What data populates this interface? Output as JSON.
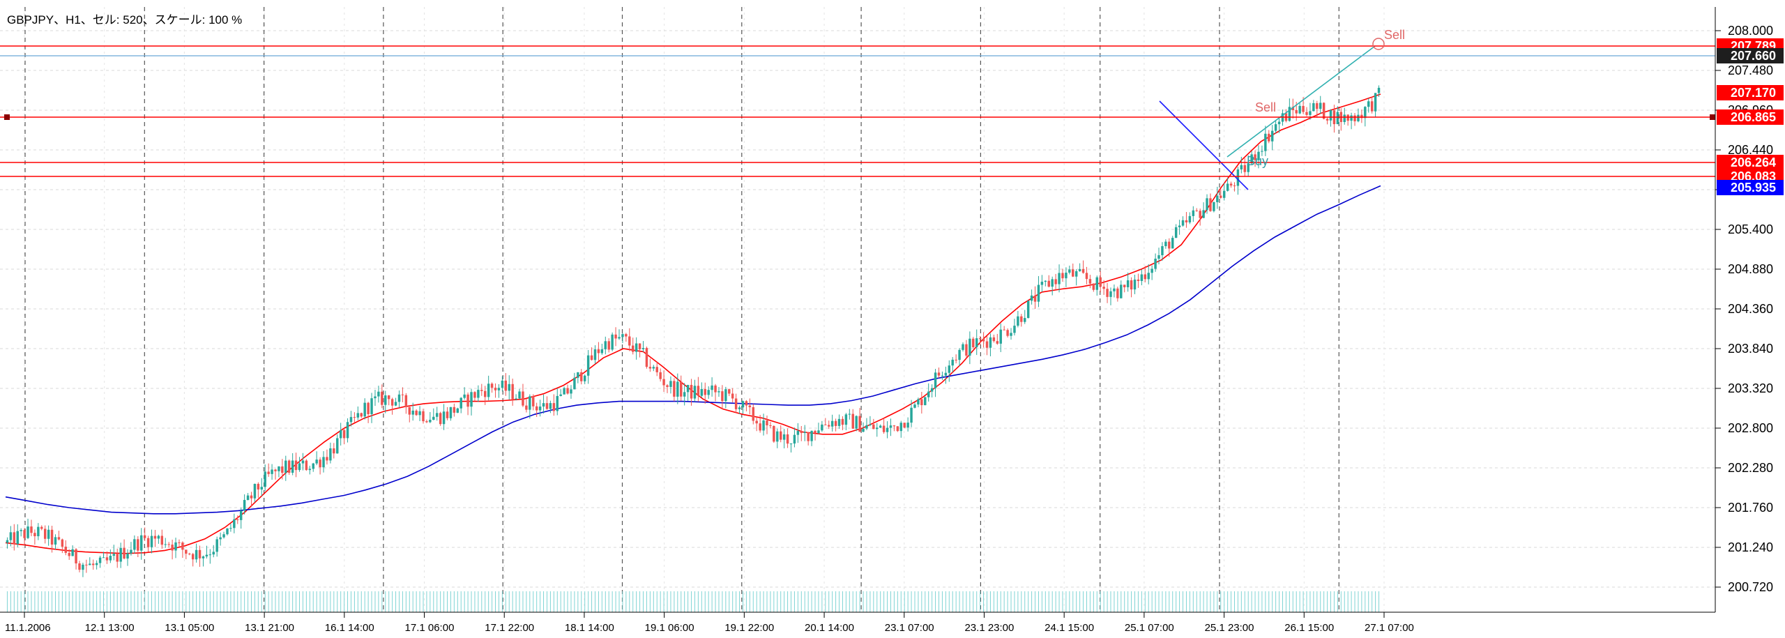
{
  "chart_data": {
    "type": "candlestick",
    "title": "GBPJPY、H1、セル: 520、スケール: 100 %",
    "ylim": [
      200.5,
      208.2
    ],
    "y_ticks": [
      "208.000",
      "207.480",
      "206.960",
      "206.440",
      "205.920",
      "205.400",
      "204.880",
      "204.360",
      "203.840",
      "203.320",
      "202.800",
      "202.280",
      "201.760",
      "201.240",
      "200.720"
    ],
    "x_ticks": [
      "11.1.2006",
      "12.1 13:00",
      "13.1 05:00",
      "13.1 21:00",
      "16.1 14:00",
      "17.1 06:00",
      "17.1 22:00",
      "18.1 14:00",
      "19.1 06:00",
      "19.1 22:00",
      "20.1 14:00",
      "23.1 07:00",
      "23.1 23:00",
      "24.1 15:00",
      "25.1 07:00",
      "25.1 23:00",
      "26.1 15:00",
      "27.1 07:00"
    ],
    "grid": true,
    "price_levels": [
      {
        "value": "207.789",
        "color": "#ff0000"
      },
      {
        "value": "207.660",
        "color": "#1e1e1e",
        "kind": "bid"
      },
      {
        "value": "207.170",
        "color": "#ff0000"
      },
      {
        "value": "206.865",
        "color": "#ff0000"
      },
      {
        "value": "206.264",
        "color": "#ff0000"
      },
      {
        "value": "206.083",
        "color": "#ff0000"
      },
      {
        "value": "205.935",
        "color": "#0000ff"
      }
    ],
    "annotations": [
      {
        "text": "Sell",
        "color": "#e06666"
      },
      {
        "text": "Sell",
        "color": "#e06666"
      },
      {
        "text": "Buy",
        "color": "#2f9fa6"
      }
    ],
    "series": [
      {
        "type": "ma",
        "color": "#ff0000",
        "values": [
          201.3,
          201.27,
          201.23,
          201.2,
          201.18,
          201.17,
          201.16,
          201.17,
          201.2,
          201.26,
          201.35,
          201.5,
          201.7,
          201.95,
          202.2,
          202.42,
          202.62,
          202.8,
          202.93,
          203.02,
          203.08,
          203.12,
          203.14,
          203.15,
          203.15,
          203.16,
          203.18,
          203.25,
          203.36,
          203.52,
          203.72,
          203.84,
          203.8,
          203.6,
          203.38,
          203.18,
          203.05,
          202.98,
          202.93,
          202.85,
          202.75,
          202.72,
          202.72,
          202.8,
          202.92,
          203.05,
          203.2,
          203.4,
          203.65,
          203.95,
          204.2,
          204.42,
          204.58,
          204.62,
          204.65,
          204.7,
          204.78,
          204.88,
          205.0,
          205.2,
          205.55,
          205.95,
          206.3,
          206.55,
          206.7,
          206.8,
          206.92,
          207.0,
          207.08,
          207.17
        ]
      },
      {
        "type": "ma",
        "color": "#0000cc",
        "values": [
          201.9,
          201.85,
          201.8,
          201.76,
          201.73,
          201.7,
          201.69,
          201.68,
          201.68,
          201.69,
          201.7,
          201.72,
          201.75,
          201.78,
          201.82,
          201.87,
          201.92,
          201.99,
          202.07,
          202.17,
          202.3,
          202.45,
          202.6,
          202.75,
          202.88,
          202.98,
          203.05,
          203.1,
          203.13,
          203.15,
          203.15,
          203.15,
          203.15,
          203.14,
          203.13,
          203.12,
          203.11,
          203.1,
          203.1,
          203.12,
          203.16,
          203.22,
          203.3,
          203.38,
          203.45,
          203.5,
          203.55,
          203.6,
          203.65,
          203.7,
          203.76,
          203.83,
          203.92,
          204.02,
          204.15,
          204.3,
          204.48,
          204.7,
          204.92,
          205.12,
          205.3,
          205.45,
          205.6,
          205.72,
          205.85,
          205.97
        ]
      }
    ]
  }
}
